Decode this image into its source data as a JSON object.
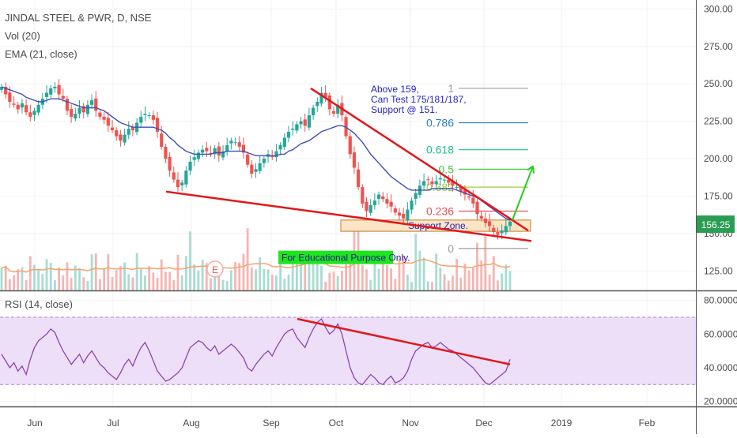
{
  "legend": {
    "symbol": "JINDAL STEEL & PWR, D, NSE",
    "volume": "Vol (20)",
    "ema": "EMA (21, close)",
    "rsi": "RSI (14, close)"
  },
  "colors": {
    "up": "#26a69a",
    "down": "#ef5350",
    "ema": "#3f51b5",
    "vol_ma": "#f5a36d",
    "rsi": "#8e44ad",
    "rsi_band": "#ecdff7",
    "trendline": "#e3161a",
    "arrow": "#22cc22",
    "zone_fill": "#fbe5c4",
    "zone_stroke": "#c07a2a",
    "last_price_bg": "#2a9d55"
  },
  "annotations": {
    "target_note": [
      "Above 159,",
      "Can Test 175/181/187,",
      "Support @ 151."
    ],
    "support_zone": "Support Zone.",
    "educational": "For Educational Purpose Only.",
    "marker": "E"
  },
  "fib": [
    {
      "label": "1",
      "price": 247,
      "color": "#9e9e9e"
    },
    {
      "label": "0.786",
      "price": 224,
      "color": "#2c7bd0"
    },
    {
      "label": "0.618",
      "price": 206,
      "color": "#1fbf8f"
    },
    {
      "label": "0.5",
      "price": 193,
      "color": "#43c943"
    },
    {
      "label": "0.382",
      "price": 181,
      "color": "#9bd23a"
    },
    {
      "label": "0.236",
      "price": 165,
      "color": "#e35454"
    },
    {
      "label": "0",
      "price": 140,
      "color": "#9e9e9e"
    }
  ],
  "last_price": "156.25",
  "chart_data": [
    {
      "type": "candlestick",
      "title": "JINDAL STEEL & PWR, D, NSE",
      "x_axis": {
        "ticks": [
          "Jun",
          "Jul",
          "Aug",
          "Sep",
          "Oct",
          "Nov",
          "Dec",
          "2019",
          "Feb"
        ]
      },
      "y_axis": {
        "ticks": [
          "300.00",
          "275.00",
          "250.00",
          "225.00",
          "200.00",
          "175.00",
          "150.00",
          "125.00"
        ],
        "range": [
          112,
          306
        ]
      },
      "close": [
        248,
        243,
        238,
        236,
        233,
        237,
        231,
        228,
        232,
        236,
        240,
        244,
        247,
        248,
        243,
        240,
        232,
        228,
        230,
        234,
        231,
        236,
        239,
        232,
        228,
        226,
        222,
        219,
        215,
        212,
        216,
        220,
        219,
        224,
        228,
        230,
        229,
        226,
        218,
        208,
        200,
        192,
        186,
        181,
        184,
        192,
        198,
        201,
        204,
        206,
        205,
        203,
        207,
        202,
        205,
        209,
        212,
        211,
        208,
        204,
        196,
        190,
        193,
        197,
        200,
        203,
        201,
        205,
        209,
        214,
        218,
        220,
        223,
        225,
        222,
        229,
        234,
        238,
        244,
        241,
        233,
        230,
        236,
        229,
        215,
        203,
        194,
        181,
        170,
        165,
        169,
        172,
        176,
        173,
        170,
        168,
        164,
        162,
        160,
        166,
        172,
        177,
        182,
        185,
        186,
        183,
        185,
        187,
        186,
        184,
        182,
        181,
        178,
        176,
        174,
        170,
        163,
        160,
        157,
        155,
        151,
        149,
        152,
        155,
        158
      ],
      "ema_21": [
        248,
        247,
        246,
        245,
        244,
        243,
        241,
        240,
        239,
        238,
        238,
        239,
        240,
        240,
        240,
        239,
        238,
        237,
        236,
        235,
        234,
        234,
        234,
        234,
        233,
        232,
        230,
        228,
        226,
        224,
        223,
        222,
        221,
        221,
        221,
        221,
        221,
        221,
        220,
        219,
        217,
        214,
        212,
        209,
        207,
        205,
        204,
        203,
        203,
        203,
        203,
        203,
        204,
        204,
        204,
        205,
        205,
        205,
        205,
        205,
        204,
        203,
        202,
        202,
        202,
        202,
        202,
        202,
        203,
        203,
        205,
        206,
        208,
        210,
        211,
        212,
        214,
        216,
        218,
        219,
        220,
        221,
        222,
        222,
        221,
        219,
        217,
        214,
        211,
        207,
        203,
        200,
        197,
        194,
        191,
        188,
        186,
        184,
        182,
        180,
        179,
        179,
        179,
        179,
        179,
        180,
        180,
        180,
        180,
        180,
        180,
        179,
        178,
        177,
        176,
        175,
        174,
        172,
        170,
        168,
        166,
        164,
        162,
        160,
        159
      ],
      "rsi_14": [
        48,
        44,
        40,
        43,
        38,
        41,
        36,
        45,
        52,
        56,
        58,
        60,
        63,
        61,
        55,
        50,
        46,
        42,
        45,
        48,
        43,
        47,
        50,
        46,
        42,
        40,
        37,
        35,
        33,
        37,
        42,
        45,
        41,
        47,
        52,
        55,
        50,
        44,
        38,
        35,
        32,
        33,
        35,
        37,
        40,
        46,
        52,
        54,
        56,
        55,
        52,
        50,
        53,
        48,
        50,
        52,
        54,
        52,
        49,
        46,
        40,
        38,
        42,
        45,
        48,
        50,
        47,
        52,
        56,
        60,
        62,
        63,
        58,
        55,
        52,
        58,
        63,
        67,
        69,
        64,
        60,
        62,
        66,
        60,
        50,
        40,
        34,
        31,
        30,
        33,
        36,
        34,
        31,
        30,
        33,
        35,
        31,
        32,
        34,
        38,
        45,
        50,
        52,
        54,
        55,
        52,
        53,
        55,
        53,
        51,
        50,
        48,
        46,
        44,
        42,
        40,
        37,
        34,
        31,
        30,
        32,
        34,
        36,
        38,
        45
      ],
      "rsi_levels": [
        70,
        30
      ],
      "rsi_axis_ticks": [
        "80.0000",
        "60.0000",
        "40.0000",
        "20.0000"
      ]
    }
  ]
}
